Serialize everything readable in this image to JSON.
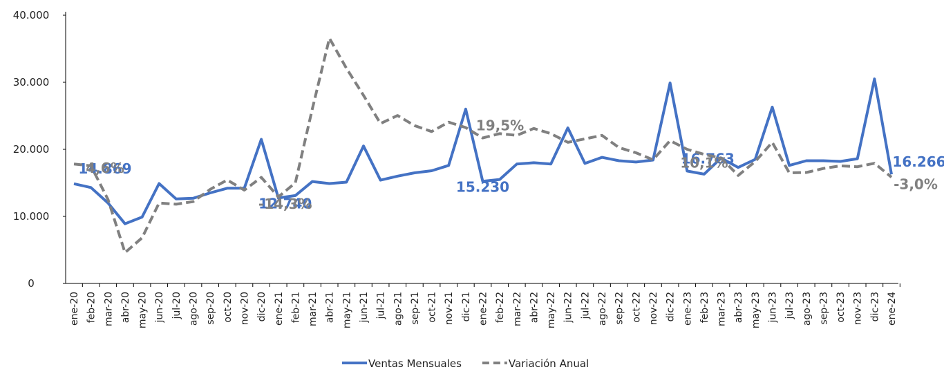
{
  "chart_data": {
    "type": "line",
    "categories": [
      "ene-20",
      "feb-20",
      "mar-20",
      "abr-20",
      "may-20",
      "jun-20",
      "jul-20",
      "ago-20",
      "sep-20",
      "oct-20",
      "nov-20",
      "dic-20",
      "ene-21",
      "feb-21",
      "mar-21",
      "abr-21",
      "may-21",
      "jun-21",
      "jul-21",
      "ago-21",
      "sep-21",
      "oct-21",
      "nov-21",
      "dic-21",
      "ene-22",
      "feb-22",
      "mar-22",
      "abr-22",
      "may-22",
      "jun-22",
      "jul-22",
      "ago-22",
      "sep-22",
      "oct-22",
      "nov-22",
      "dic-22",
      "ene-23",
      "feb-23",
      "mar-23",
      "abr-23",
      "may-23",
      "jun-23",
      "jul-23",
      "ago-23",
      "sep-23",
      "oct-23",
      "nov-23",
      "dic-23",
      "ene-24"
    ],
    "series": [
      {
        "name": "Ventas Mensuales",
        "color": "#4472c4",
        "dashed": false,
        "values": [
          14869,
          14300,
          12000,
          8900,
          9900,
          14900,
          12600,
          12700,
          13500,
          14200,
          14200,
          21500,
          12740,
          13100,
          15200,
          14900,
          15100,
          20500,
          15400,
          16000,
          16500,
          16800,
          17600,
          26000,
          15230,
          15500,
          17800,
          18000,
          17800,
          23200,
          17900,
          18800,
          18300,
          18100,
          18400,
          29900,
          16763,
          16300,
          18700,
          17300,
          18500,
          26300,
          17600,
          18300,
          18300,
          18200,
          18600,
          30500,
          16266
        ],
        "value_labels": [
          "14.869",
          null,
          null,
          null,
          null,
          null,
          null,
          null,
          null,
          null,
          null,
          null,
          "12.740",
          null,
          null,
          null,
          null,
          null,
          null,
          null,
          null,
          null,
          null,
          null,
          "15.230",
          null,
          null,
          null,
          null,
          null,
          null,
          null,
          null,
          null,
          null,
          null,
          "16.763",
          null,
          null,
          null,
          null,
          null,
          null,
          null,
          null,
          null,
          null,
          null,
          "16.266"
        ]
      },
      {
        "name": "Variación Anual",
        "color": "#808080",
        "dashed": true,
        "axis": "y2",
        "values": [
          4.6,
          3.5,
          -15.8,
          -46.3,
          -37.8,
          -17.8,
          -18.5,
          -17.0,
          -10.0,
          -4.6,
          -10.4,
          -3.1,
          -14.3,
          -6.2,
          36.3,
          76.8,
          59.5,
          44.0,
          27.8,
          32.4,
          26.6,
          23.2,
          28.6,
          25.5,
          19.5,
          22.0,
          21.0,
          25.0,
          22.0,
          17.0,
          19.0,
          21.0,
          14.0,
          11.0,
          7.0,
          18.0,
          13.0,
          10.1,
          8.0,
          -2.0,
          6.0,
          17.0,
          -0.5,
          -0.3,
          2.0,
          3.5,
          3.0,
          5.0,
          -3.0
        ],
        "value_labels": [
          "4,6%",
          null,
          null,
          null,
          null,
          null,
          null,
          null,
          null,
          null,
          null,
          null,
          "-14,3%",
          null,
          null,
          null,
          null,
          null,
          null,
          null,
          null,
          null,
          null,
          null,
          "19,5%",
          null,
          null,
          null,
          null,
          null,
          null,
          null,
          null,
          null,
          null,
          null,
          null,
          "10,1%",
          null,
          null,
          null,
          null,
          null,
          null,
          null,
          null,
          null,
          null,
          "-3,0%"
        ]
      }
    ],
    "ylim": [
      0,
      40000
    ],
    "yticks": [
      0,
      {
        "value": 10000,
        "label": "10.000"
      },
      {
        "value": 20000,
        "label": "20.000"
      },
      {
        "value": 30000,
        "label": "30.000"
      },
      {
        "value": 40000,
        "label": "40.000"
      }
    ],
    "y2lim": [
      -64,
      90
    ],
    "legend": "bottom"
  }
}
